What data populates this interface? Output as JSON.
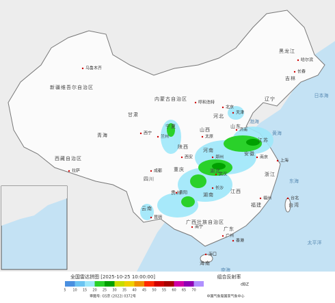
{
  "legend": {
    "title": "全国雷达拼图 [2025-10-25 10:00:00]",
    "product": "组合反射率",
    "unit": "dBZ",
    "items": [
      {
        "value": 5,
        "color": "#4a8fe0"
      },
      {
        "value": 10,
        "color": "#6cc4f2"
      },
      {
        "value": 15,
        "color": "#9ee8fa"
      },
      {
        "value": 20,
        "color": "#2ad12a"
      },
      {
        "value": 25,
        "color": "#00a000"
      },
      {
        "value": 30,
        "color": "#c8dc00"
      },
      {
        "value": 35,
        "color": "#f0d000"
      },
      {
        "value": 40,
        "color": "#f09000"
      },
      {
        "value": 45,
        "color": "#ff2a00"
      },
      {
        "value": 50,
        "color": "#d00000"
      },
      {
        "value": 55,
        "color": "#a80000"
      },
      {
        "value": 60,
        "color": "#d000a8"
      },
      {
        "value": 65,
        "color": "#9000b4"
      },
      {
        "value": 70,
        "color": "#b090ff"
      }
    ],
    "approval": "审图号: GS京 (2022) 0372号",
    "publisher": "中国气象局国家气象中心"
  },
  "map": {
    "regions": [
      "新疆维吾尔自治区",
      "西藏自治区",
      "青海",
      "甘肃",
      "内蒙古自治区",
      "黑龙江",
      "吉林",
      "辽宁",
      "河北",
      "山西",
      "山东",
      "河南",
      "陕西",
      "宁夏",
      "四川",
      "重庆",
      "湖北",
      "安徽",
      "江苏",
      "浙江",
      "湖南",
      "江西",
      "福建",
      "台湾",
      "贵州",
      "云南",
      "广西壮族自治区",
      "广东",
      "海南"
    ],
    "cities": [
      "乌鲁木齐",
      "拉萨",
      "西宁",
      "兰州",
      "呼和浩特",
      "哈尔滨",
      "长春",
      "北京",
      "天津",
      "太原",
      "济南",
      "郑州",
      "西安",
      "成都",
      "武汉",
      "南京",
      "上海",
      "长沙",
      "福州",
      "台北",
      "贵阳",
      "昆明",
      "南宁",
      "广州",
      "香港",
      "海口"
    ],
    "seas": [
      "渤海",
      "黄海",
      "东海",
      "南海",
      "日本海",
      "太平洋"
    ]
  }
}
